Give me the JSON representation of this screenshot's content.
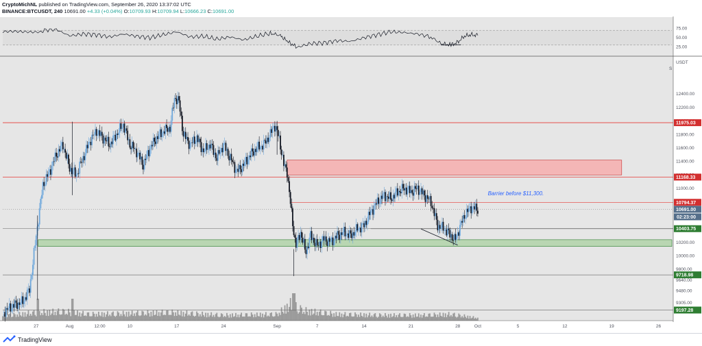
{
  "header": {
    "author": "CryptoMichNL",
    "published": "published on TradingView.com, September 26, 2020 13:37:02 UTC",
    "symbol": "BINANCE:BTCUSDT, 240",
    "last": "10691.00",
    "change": "+4.33 (+0.04%)",
    "o_label": "O:",
    "o": "10709.93",
    "h_label": "H:",
    "h": "10709.94",
    "l_label": "L:",
    "l": "10666.23",
    "c_label": "C:",
    "c": "10691.00"
  },
  "footer": {
    "brand": "TradingView"
  },
  "colors": {
    "background": "#e6e6e6",
    "red_line": "#e53935",
    "green_tag": "#2e7d32",
    "up_candle": "#6fa8dc",
    "down_candle": "#131722",
    "volume": "#9b9b9b",
    "rsi_line": "#131722",
    "red_zone": "#f4b6b6",
    "green_zone": "#b9d6b2"
  },
  "chart_data": {
    "type": "candlestick",
    "currency": "USDT",
    "scale_marker": "S",
    "y_ticks": [
      9080,
      9305,
      9480,
      9640,
      9800,
      10000,
      10200,
      10400,
      10600,
      10800,
      11000,
      11200,
      11400,
      11600,
      11800,
      12000,
      12200,
      12400
    ],
    "ylim": [
      9040,
      12900
    ],
    "x_ticks": [
      {
        "label": "27",
        "day": 0
      },
      {
        "label": "Aug",
        "day": 5
      },
      {
        "label": "12:00",
        "day": 9.5
      },
      {
        "label": "10",
        "day": 14
      },
      {
        "label": "17",
        "day": 21
      },
      {
        "label": "24",
        "day": 28
      },
      {
        "label": "Sep",
        "day": 36
      },
      {
        "label": "7",
        "day": 42
      },
      {
        "label": "14",
        "day": 49
      },
      {
        "label": "21",
        "day": 56
      },
      {
        "label": "28",
        "day": 63
      },
      {
        "label": "Oct",
        "day": 66
      },
      {
        "label": "5",
        "day": 72
      },
      {
        "label": "12",
        "day": 79
      },
      {
        "label": "19",
        "day": 86
      },
      {
        "label": "26",
        "day": 93
      }
    ],
    "xlim": [
      -5,
      95
    ],
    "price_path": [
      [
        -5,
        9160
      ],
      [
        -3.5,
        9260
      ],
      [
        -2,
        9320
      ],
      [
        -1,
        9500
      ],
      [
        0,
        10300
      ],
      [
        1,
        11050
      ],
      [
        2,
        11250
      ],
      [
        3,
        11500
      ],
      [
        4,
        11650
      ],
      [
        5,
        11300
      ],
      [
        6,
        11200
      ],
      [
        7,
        11450
      ],
      [
        8,
        11700
      ],
      [
        9,
        11850
      ],
      [
        10,
        11750
      ],
      [
        11,
        11650
      ],
      [
        12,
        11800
      ],
      [
        13,
        11950
      ],
      [
        14,
        11650
      ],
      [
        15,
        11550
      ],
      [
        16,
        11350
      ],
      [
        17,
        11600
      ],
      [
        18,
        11750
      ],
      [
        19,
        11850
      ],
      [
        20,
        11900
      ],
      [
        20.7,
        12350
      ],
      [
        21.3,
        12300
      ],
      [
        22,
        11800
      ],
      [
        23,
        11650
      ],
      [
        24,
        11750
      ],
      [
        25,
        11550
      ],
      [
        26,
        11650
      ],
      [
        27,
        11450
      ],
      [
        28,
        11650
      ],
      [
        29,
        11450
      ],
      [
        30,
        11250
      ],
      [
        31,
        11350
      ],
      [
        32,
        11500
      ],
      [
        33,
        11600
      ],
      [
        34,
        11650
      ],
      [
        35,
        11800
      ],
      [
        35.6,
        11950
      ],
      [
        36.3,
        11750
      ],
      [
        37,
        11350
      ],
      [
        37.5,
        11250
      ],
      [
        38.3,
        10500
      ],
      [
        38.8,
        10150
      ],
      [
        39.5,
        10350
      ],
      [
        40.3,
        10050
      ],
      [
        41,
        10300
      ],
      [
        42,
        10150
      ],
      [
        43,
        10250
      ],
      [
        44,
        10200
      ],
      [
        45,
        10300
      ],
      [
        46,
        10350
      ],
      [
        47,
        10300
      ],
      [
        48,
        10400
      ],
      [
        49,
        10450
      ],
      [
        50,
        10650
      ],
      [
        51,
        10800
      ],
      [
        52,
        10900
      ],
      [
        53,
        10850
      ],
      [
        54,
        10950
      ],
      [
        55,
        11000
      ],
      [
        56,
        10950
      ],
      [
        57,
        11000
      ],
      [
        58,
        10900
      ],
      [
        59,
        10800
      ],
      [
        60,
        10450
      ],
      [
        61,
        10400
      ],
      [
        62,
        10300
      ],
      [
        62.6,
        10230
      ],
      [
        63.3,
        10420
      ],
      [
        64,
        10600
      ],
      [
        65,
        10720
      ],
      [
        66,
        10691
      ]
    ],
    "rsi": {
      "ticks": [
        25,
        50,
        75
      ],
      "range": [
        30,
        70
      ],
      "path": [
        [
          -5,
          62
        ],
        [
          -2,
          66
        ],
        [
          1,
          70
        ],
        [
          3,
          72
        ],
        [
          5,
          55
        ],
        [
          7,
          60
        ],
        [
          9,
          58
        ],
        [
          11,
          52
        ],
        [
          13,
          60
        ],
        [
          15,
          54
        ],
        [
          17,
          50
        ],
        [
          19,
          58
        ],
        [
          21,
          66
        ],
        [
          23,
          52
        ],
        [
          25,
          54
        ],
        [
          27,
          46
        ],
        [
          29,
          52
        ],
        [
          31,
          44
        ],
        [
          33,
          54
        ],
        [
          35,
          62
        ],
        [
          36.5,
          56
        ],
        [
          37.5,
          40
        ],
        [
          39,
          24
        ],
        [
          41,
          34
        ],
        [
          43,
          36
        ],
        [
          45,
          42
        ],
        [
          47,
          40
        ],
        [
          49,
          50
        ],
        [
          51,
          58
        ],
        [
          53,
          66
        ],
        [
          55,
          64
        ],
        [
          57,
          60
        ],
        [
          59,
          52
        ],
        [
          60.5,
          34
        ],
        [
          62,
          30
        ],
        [
          63,
          38
        ],
        [
          64,
          54
        ],
        [
          65,
          58
        ],
        [
          66,
          56
        ]
      ],
      "trendline": [
        [
          60.5,
          30
        ],
        [
          63.5,
          31
        ]
      ]
    },
    "volume": {
      "max": 1.0,
      "seed_profile": [
        [
          -5,
          0.25
        ],
        [
          0,
          0.45
        ],
        [
          4,
          0.5
        ],
        [
          8,
          0.35
        ],
        [
          14,
          0.4
        ],
        [
          20,
          0.45
        ],
        [
          28,
          0.3
        ],
        [
          36,
          0.35
        ],
        [
          38,
          0.9
        ],
        [
          40,
          0.55
        ],
        [
          45,
          0.35
        ],
        [
          52,
          0.3
        ],
        [
          58,
          0.3
        ],
        [
          62,
          0.35
        ],
        [
          66,
          0.15
        ]
      ]
    },
    "levels": [
      {
        "price": 11975.03,
        "label": "11975.03",
        "color": "#e53935"
      },
      {
        "price": 11168.33,
        "label": "11168.33",
        "color": "#e53935"
      },
      {
        "price": 10794.37,
        "label": "10794.37",
        "color": "#e53935"
      },
      {
        "price": 10403.75,
        "label": "10403.75",
        "color": "#2e7d32"
      },
      {
        "price": 9718.98,
        "label": "9718.98",
        "color": "#2e7d32"
      },
      {
        "price": 9197.28,
        "label": "9197.28",
        "color": "#2e7d32"
      }
    ],
    "current_price": {
      "price": 10691.0,
      "label": "10691.00"
    },
    "countdown": {
      "label": "02:23:00"
    },
    "zones": [
      {
        "name": "resistance-zone",
        "x0": 37.5,
        "x1": 87.5,
        "y0": 11200,
        "y1": 11420,
        "color": "#f4b6b6"
      },
      {
        "name": "support-zone",
        "x0": 0.3,
        "x1": 95,
        "y0": 10140,
        "y1": 10240,
        "color": "#b9d6b2"
      }
    ],
    "annotation": {
      "text": "Barrier before $11,300.",
      "day": 67.5,
      "price": 10900
    },
    "trendline": [
      [
        57.5,
        10400
      ],
      [
        63,
        10160
      ]
    ],
    "ref_segments": [
      {
        "price": 10794.37,
        "x0": 38,
        "x1": 95
      },
      {
        "price": 10403.75,
        "x0": 50,
        "x1": 95
      }
    ]
  }
}
